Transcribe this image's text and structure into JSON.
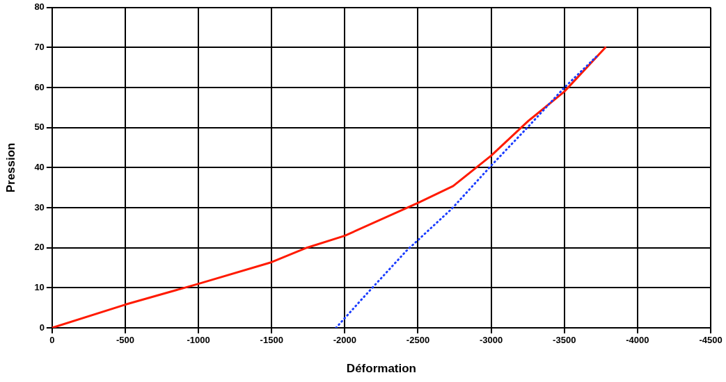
{
  "chart_data": {
    "type": "line",
    "xlabel": "Déformation",
    "ylabel": "Pression",
    "xlim": [
      0,
      -4500
    ],
    "xticks": [
      0,
      -500,
      -1000,
      -1500,
      -2000,
      -2500,
      -3000,
      -3500,
      -4000,
      -4500
    ],
    "ylim": [
      0,
      80
    ],
    "yticks": [
      0,
      10,
      20,
      30,
      40,
      50,
      60,
      70,
      80
    ],
    "grid": true,
    "marker": "none",
    "legend": false,
    "series": [
      {
        "color": "#ff1a00",
        "line_style": "solid",
        "x": [
          0,
          -500,
          -1000,
          -1500,
          -1740,
          -2000,
          -2500,
          -2740,
          -3000,
          -3255,
          -3500,
          -3780
        ],
        "values": [
          0,
          5.8,
          11,
          16.4,
          20,
          23,
          31.2,
          35.4,
          43,
          51.7,
          59,
          70
        ]
      },
      {
        "color": "#1a3cff",
        "line_style": "dotted",
        "x": [
          -1940,
          -2135,
          -2420,
          -2730,
          -3000,
          -3255,
          -3500,
          -3735
        ],
        "values": [
          0,
          7.9,
          19.2,
          29.7,
          40.5,
          50.3,
          60,
          68.3
        ]
      }
    ]
  }
}
